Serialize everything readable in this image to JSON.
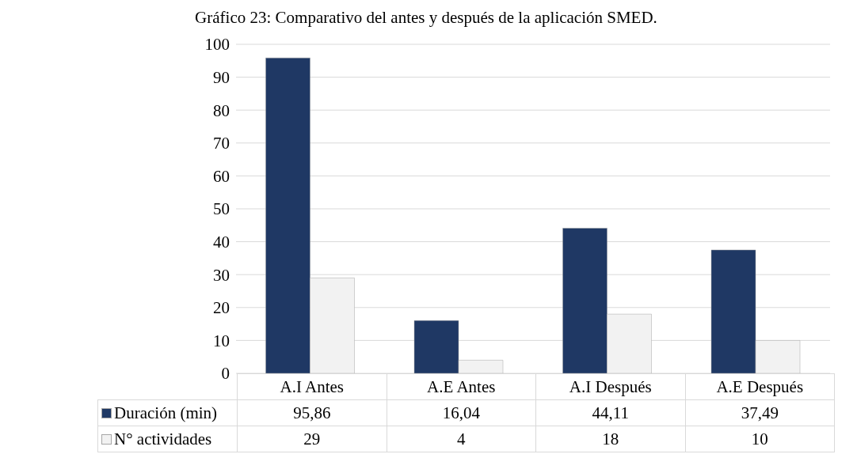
{
  "chart_data": {
    "type": "bar",
    "title": "Gráfico 23: Comparativo del antes y después de la aplicación SMED.",
    "categories": [
      "A.I Antes",
      "A.E Antes",
      "A.I Después",
      "A.E Después"
    ],
    "series": [
      {
        "name": "Duración (min)",
        "color": "#1f3864",
        "values": [
          95.86,
          16.04,
          44.11,
          37.49
        ],
        "value_labels": [
          "95,86",
          "16,04",
          "44,11",
          "37,49"
        ]
      },
      {
        "name": "N° actividades",
        "color": "#f2f2f2",
        "values": [
          29,
          4,
          18,
          10
        ],
        "value_labels": [
          "29",
          "4",
          "18",
          "10"
        ]
      }
    ],
    "ylim": [
      0,
      100
    ],
    "yticks": [
      0,
      10,
      20,
      30,
      40,
      50,
      60,
      70,
      80,
      90,
      100
    ],
    "grid": "y",
    "legend": "bottom"
  }
}
